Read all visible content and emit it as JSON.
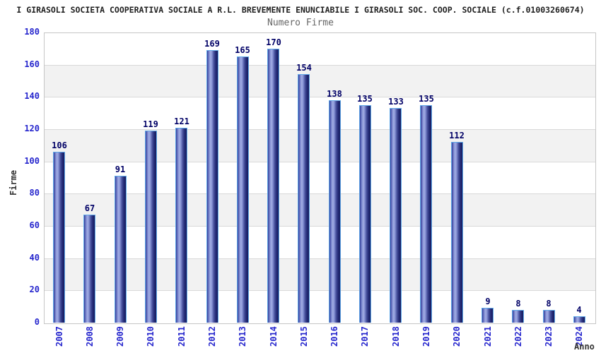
{
  "title": "I GIRASOLI SOCIETA COOPERATIVA SOCIALE A R.L. BREVEMENTE ENUNCIABILE I GIRASOLI SOC. COOP. SOCIALE (c.f.01003260674)",
  "subtitle": "Numero Firme",
  "chart_data": {
    "type": "bar",
    "title": "Numero Firme",
    "xlabel": "Anno",
    "ylabel": "Firme",
    "categories": [
      "2007",
      "2008",
      "2009",
      "2010",
      "2011",
      "2012",
      "2013",
      "2014",
      "2015",
      "2016",
      "2017",
      "2018",
      "2019",
      "2020",
      "2021",
      "2022",
      "2023",
      "2024"
    ],
    "values": [
      106,
      67,
      91,
      119,
      121,
      169,
      165,
      170,
      154,
      138,
      135,
      133,
      135,
      112,
      9,
      8,
      8,
      4
    ],
    "ylim": [
      0,
      180
    ],
    "ytick_step": 20,
    "grid": true,
    "legend": false,
    "band_fill_alternating": true,
    "bar_labels_shown": true
  },
  "colors": {
    "title_text": "#1f1f1f",
    "subtitle_text": "#666666",
    "tick_label_blue": "#2525cd",
    "value_label_navy": "#000066",
    "axis_label_text": "#333333",
    "band_gray": "#f2f2f2",
    "gridline": "#d9d9d9",
    "plot_border": "#c6c6c6",
    "bar_border_lightblue": "#5ea7e8",
    "bar_gradient_dark": "#161c5e",
    "bar_gradient_light": "#a3aee4"
  }
}
